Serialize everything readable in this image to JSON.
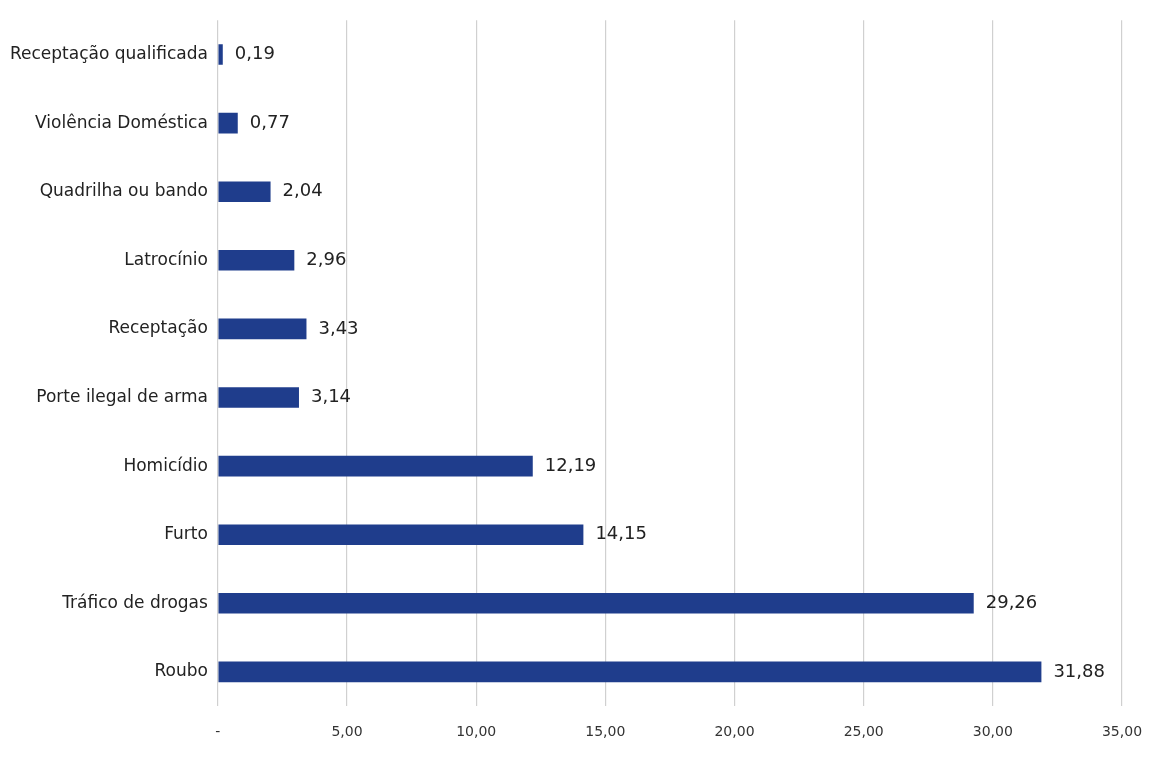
{
  "chart_data": {
    "type": "bar",
    "orientation": "horizontal",
    "categories": [
      "Receptação qualificada",
      "Violência Doméstica",
      "Quadrilha ou bando",
      "Latrocínio",
      "Receptação",
      "Porte ilegal de arma",
      "Homicídio",
      "Furto",
      "Tráfico de drogas",
      "Roubo"
    ],
    "values": [
      0.19,
      0.77,
      2.04,
      2.96,
      3.43,
      3.14,
      12.19,
      14.15,
      29.26,
      31.88
    ],
    "value_labels": [
      "0,19",
      "0,77",
      "2,04",
      "2,96",
      "3,43",
      "3,14",
      "12,19",
      "14,15",
      "29,26",
      "31,88"
    ],
    "color": "#1f3d8c",
    "xlim": [
      0,
      35
    ],
    "xticks": [
      {
        "value": 0,
        "label": "-"
      },
      {
        "value": 5,
        "label": "5,00"
      },
      {
        "value": 10,
        "label": "10,00"
      },
      {
        "value": 15,
        "label": "15,00"
      },
      {
        "value": 20,
        "label": "20,00"
      },
      {
        "value": 25,
        "label": "25,00"
      },
      {
        "value": 30,
        "label": "30,00"
      },
      {
        "value": 35,
        "label": "35,00"
      }
    ],
    "grid": "x",
    "legend": false
  }
}
